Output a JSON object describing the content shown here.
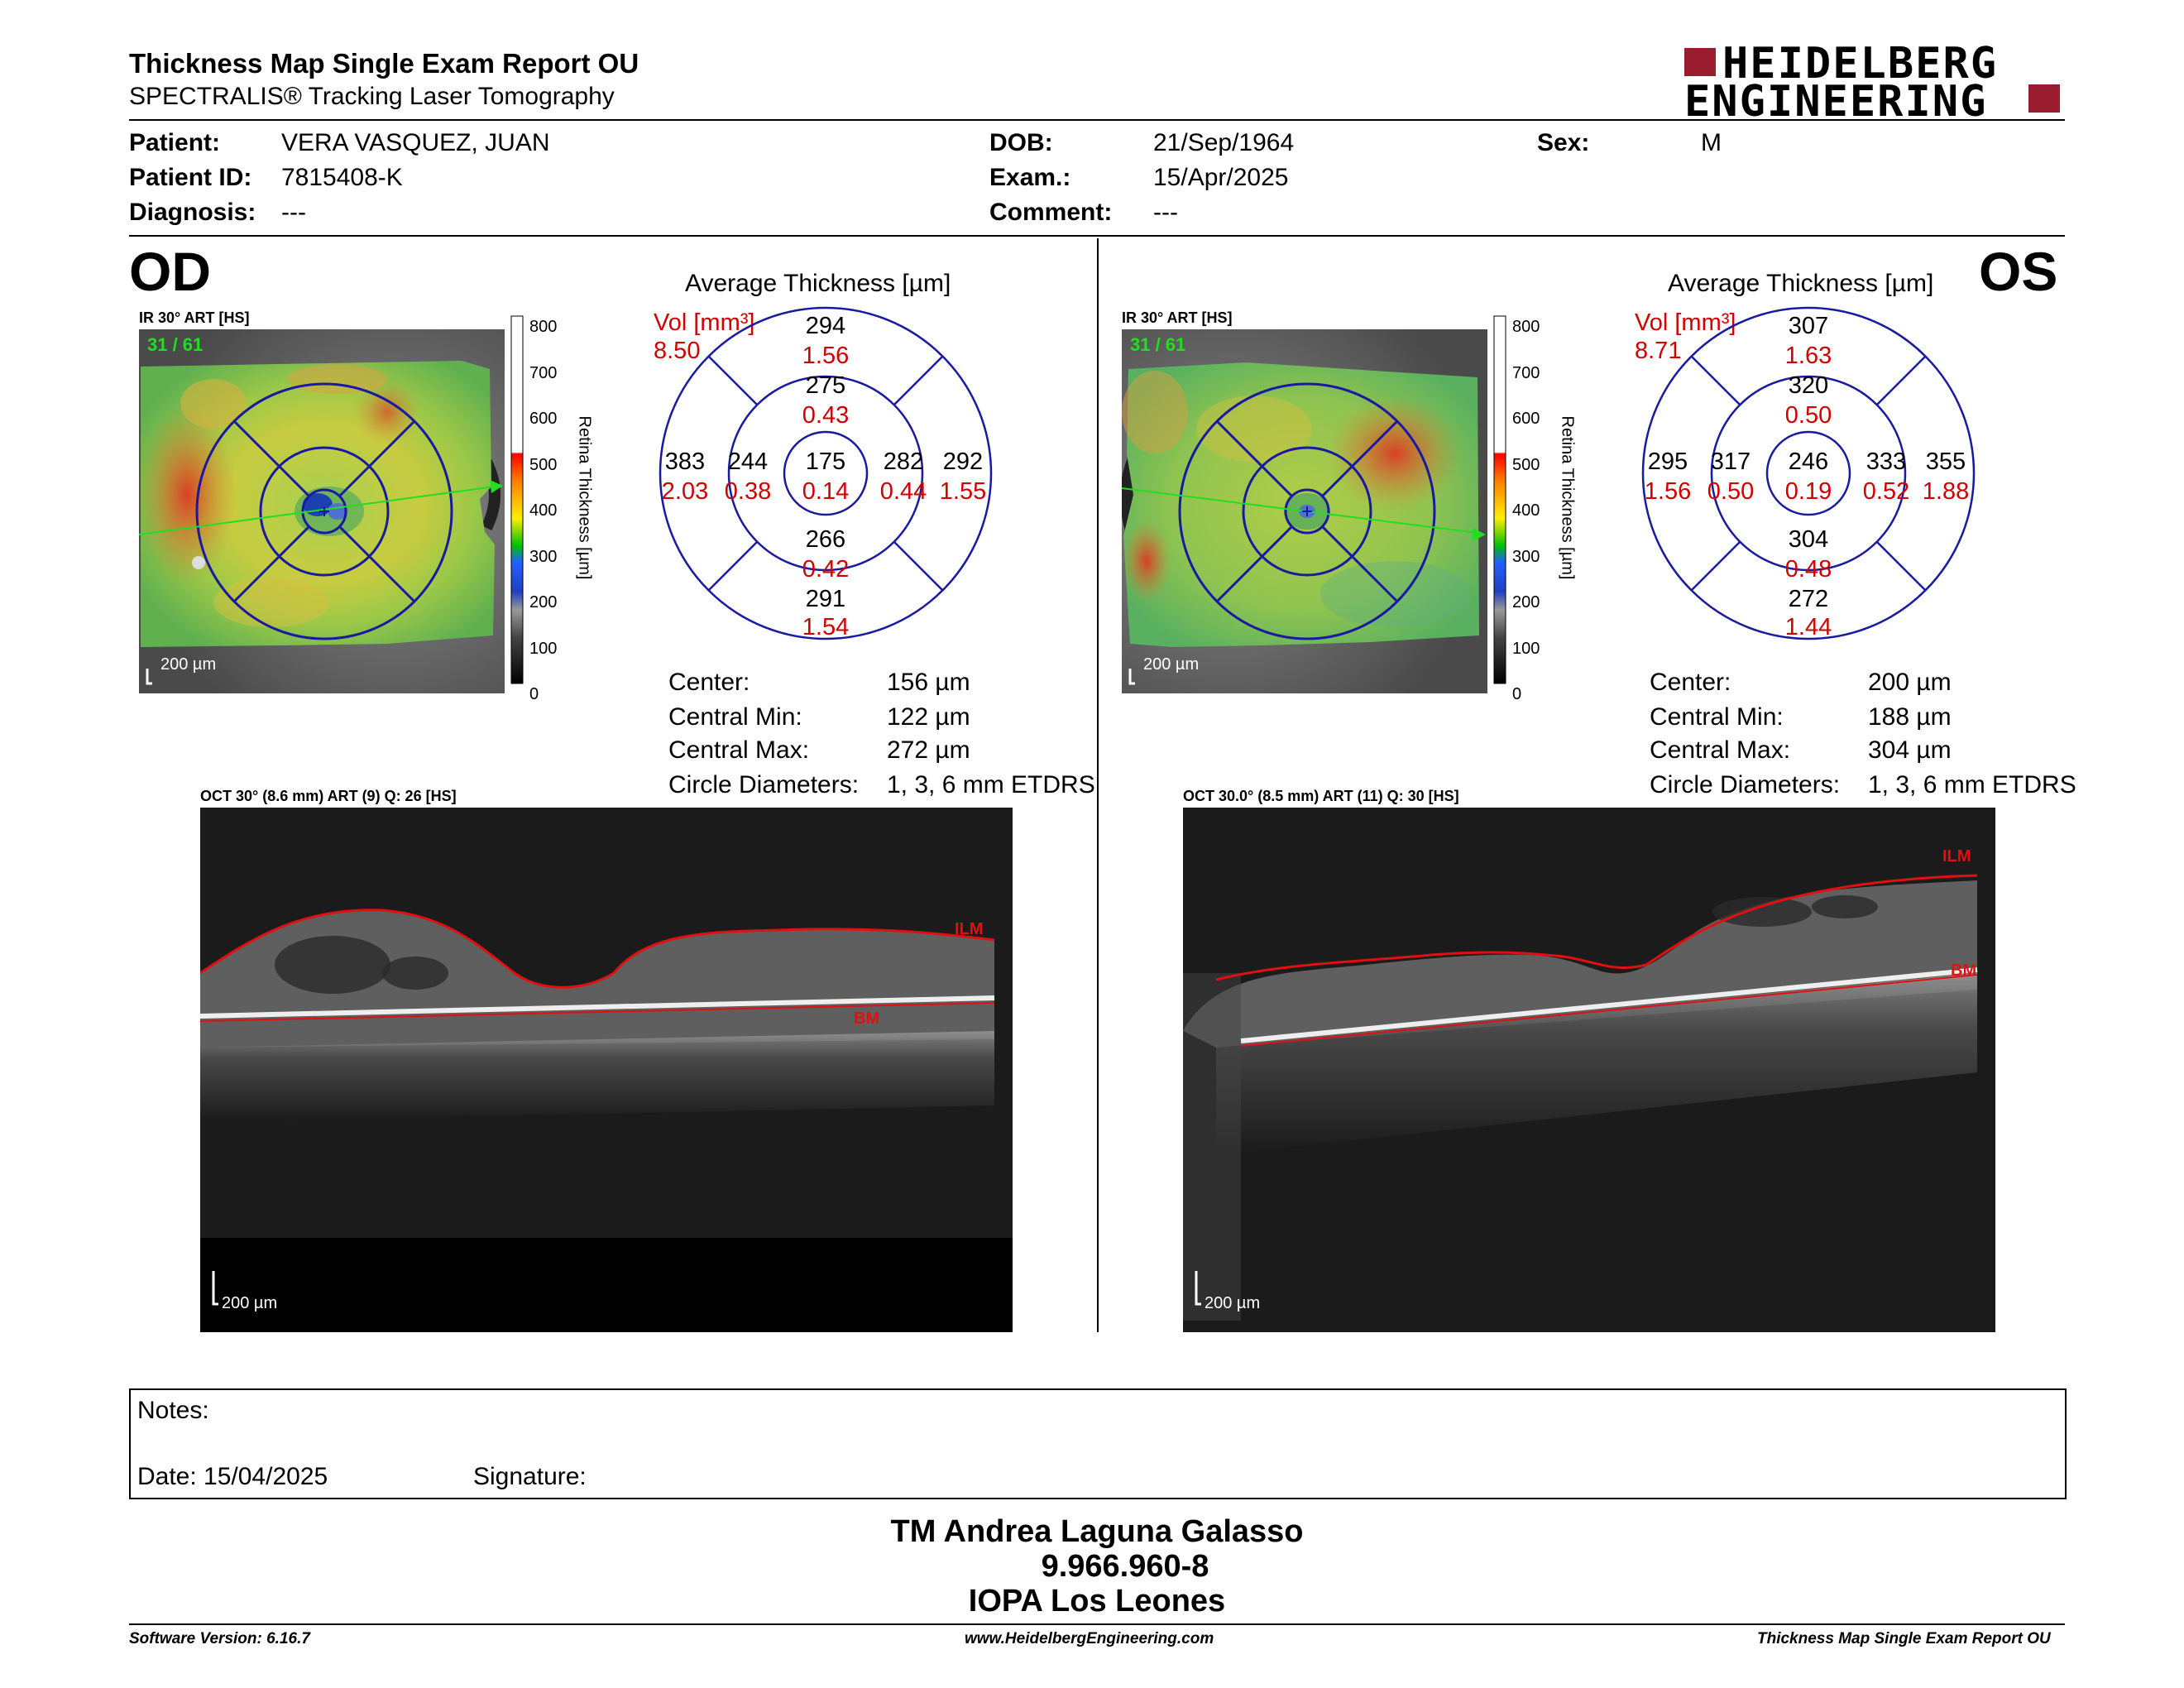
{
  "header": {
    "title": "Thickness Map Single Exam Report OU",
    "subtitle": "SPECTRALIS® Tracking Laser Tomography",
    "logo_line1": "HEIDELBERG",
    "logo_line2": "ENGINEERING"
  },
  "patient": {
    "patient_label": "Patient:",
    "patient_value": "VERA VASQUEZ, JUAN",
    "id_label": "Patient ID:",
    "id_value": "7815408-K",
    "diag_label": "Diagnosis:",
    "diag_value": "---",
    "dob_label": "DOB:",
    "dob_value": "21/Sep/1964",
    "exam_label": "Exam.:",
    "exam_value": "15/Apr/2025",
    "comment_label": "Comment:",
    "comment_value": "---",
    "sex_label": "Sex:",
    "sex_value": "M"
  },
  "od": {
    "eye_label": "OD",
    "ir_caption": "IR 30° ART [HS]",
    "frames": "31 / 61",
    "scale_label": "200 µm",
    "colorbar_ticks": [
      "800",
      "700",
      "600",
      "500",
      "400",
      "300",
      "200",
      "100",
      "0"
    ],
    "colorbar_title": "Retina Thickness [µm]",
    "avg_title": "Average Thickness [µm]",
    "vol_label": "Vol [mm³]",
    "vol_value": "8.50",
    "grid": {
      "outer_top": {
        "t": "294",
        "v": "1.56"
      },
      "inner_top": {
        "t": "275",
        "v": "0.43"
      },
      "outer_left": {
        "t": "383",
        "v": "2.03"
      },
      "inner_left": {
        "t": "244",
        "v": "0.38"
      },
      "center": {
        "t": "175",
        "v": "0.14"
      },
      "inner_right": {
        "t": "282",
        "v": "0.44"
      },
      "outer_right": {
        "t": "292",
        "v": "1.55"
      },
      "inner_bottom": {
        "t": "266",
        "v": "0.42"
      },
      "outer_bottom": {
        "t": "291",
        "v": "1.54"
      }
    },
    "stats": [
      {
        "label": "Center:",
        "value": "156 µm"
      },
      {
        "label": "Central Min:",
        "value": "122 µm"
      },
      {
        "label": "Central Max:",
        "value": "272 µm"
      },
      {
        "label": "Circle Diameters:",
        "value": "1, 3, 6 mm ETDRS"
      }
    ],
    "oct_caption": "OCT 30° (8.6 mm) ART (9) Q: 26 [HS]",
    "ilm": "ILM",
    "bm": "BM",
    "oct_scale": "200 µm"
  },
  "os": {
    "eye_label": "OS",
    "ir_caption": "IR 30° ART [HS]",
    "frames": "31 / 61",
    "scale_label": "200 µm",
    "colorbar_ticks": [
      "800",
      "700",
      "600",
      "500",
      "400",
      "300",
      "200",
      "100",
      "0"
    ],
    "colorbar_title": "Retina Thickness [µm]",
    "avg_title": "Average Thickness [µm]",
    "vol_label": "Vol [mm³]",
    "vol_value": "8.71",
    "grid": {
      "outer_top": {
        "t": "307",
        "v": "1.63"
      },
      "inner_top": {
        "t": "320",
        "v": "0.50"
      },
      "outer_left": {
        "t": "295",
        "v": "1.56"
      },
      "inner_left": {
        "t": "317",
        "v": "0.50"
      },
      "center": {
        "t": "246",
        "v": "0.19"
      },
      "inner_right": {
        "t": "333",
        "v": "0.52"
      },
      "outer_right": {
        "t": "355",
        "v": "1.88"
      },
      "inner_bottom": {
        "t": "304",
        "v": "0.48"
      },
      "outer_bottom": {
        "t": "272",
        "v": "1.44"
      }
    },
    "stats": [
      {
        "label": "Center:",
        "value": "200 µm"
      },
      {
        "label": "Central Min:",
        "value": "188 µm"
      },
      {
        "label": "Central Max:",
        "value": "304 µm"
      },
      {
        "label": "Circle Diameters:",
        "value": "1, 3, 6 mm ETDRS"
      }
    ],
    "oct_caption": "OCT 30.0° (8.5 mm) ART (11) Q: 30 [HS]",
    "ilm": "ILM",
    "bm": "BM",
    "oct_scale": "200 µm"
  },
  "notes": {
    "notes_label": "Notes:",
    "date_label": "Date: 15/04/2025",
    "signature_label": "Signature:"
  },
  "signer": {
    "name": "TM Andrea Laguna Galasso",
    "id": "9.966.960-8",
    "institution": "IOPA Los Leones"
  },
  "footer": {
    "software": "Software Version: 6.16.7",
    "website": "www.HeidelbergEngineering.com",
    "report": "Thickness Map Single Exam Report OU"
  },
  "colors": {
    "brand": "#9b1c2e",
    "grid_blue": "#1a1aa0",
    "vol_red": "#d00000",
    "scan_green": "#22dd22",
    "ilm_red": "#e01010"
  }
}
